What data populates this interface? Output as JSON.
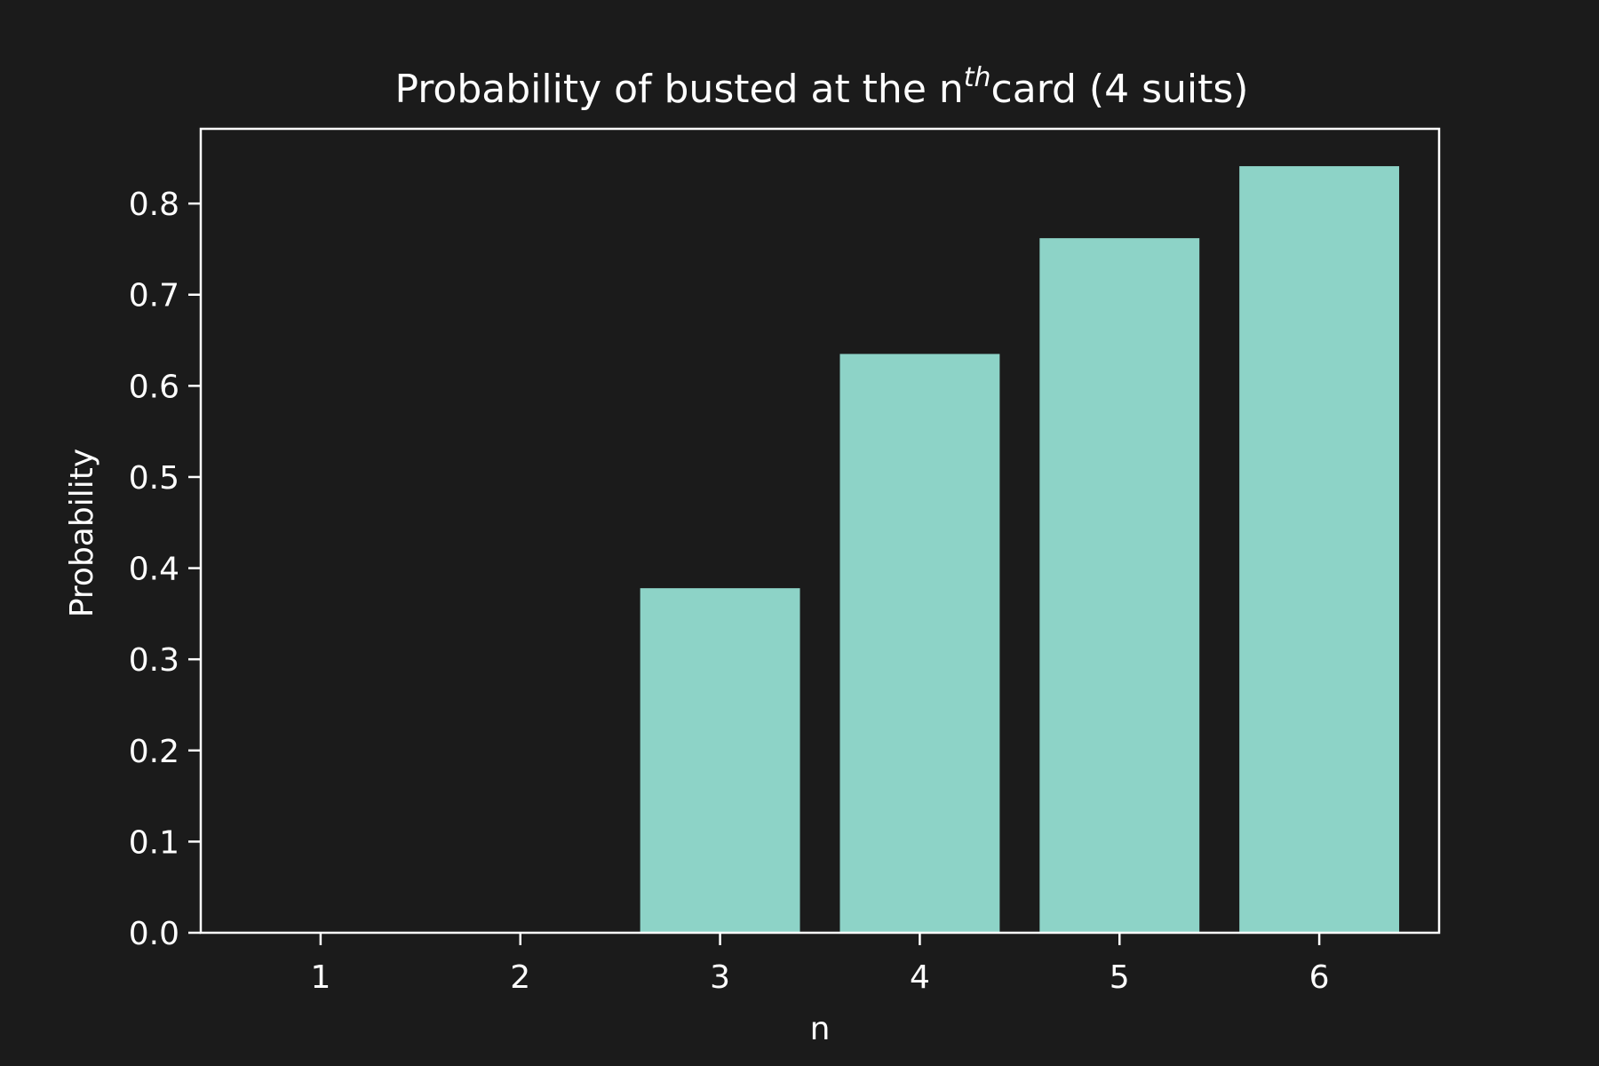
{
  "chart_data": {
    "type": "bar",
    "title": {
      "prefix": "Probability of busted at the n",
      "superscript": "th",
      "suffix": "card (4 suits)"
    },
    "xlabel": "n",
    "ylabel": "Probability",
    "categories": [
      "1",
      "2",
      "3",
      "4",
      "5",
      "6"
    ],
    "values": [
      0.0,
      0.0,
      0.378,
      0.635,
      0.762,
      0.841
    ],
    "ylim": [
      0,
      0.882
    ],
    "yticks": [
      "0.0",
      "0.1",
      "0.2",
      "0.3",
      "0.4",
      "0.5",
      "0.6",
      "0.7",
      "0.8"
    ],
    "grid": false,
    "colors": {
      "background": "#1b1b1b",
      "bar": "#8dd3c7",
      "foreground": "#ffffff"
    }
  }
}
